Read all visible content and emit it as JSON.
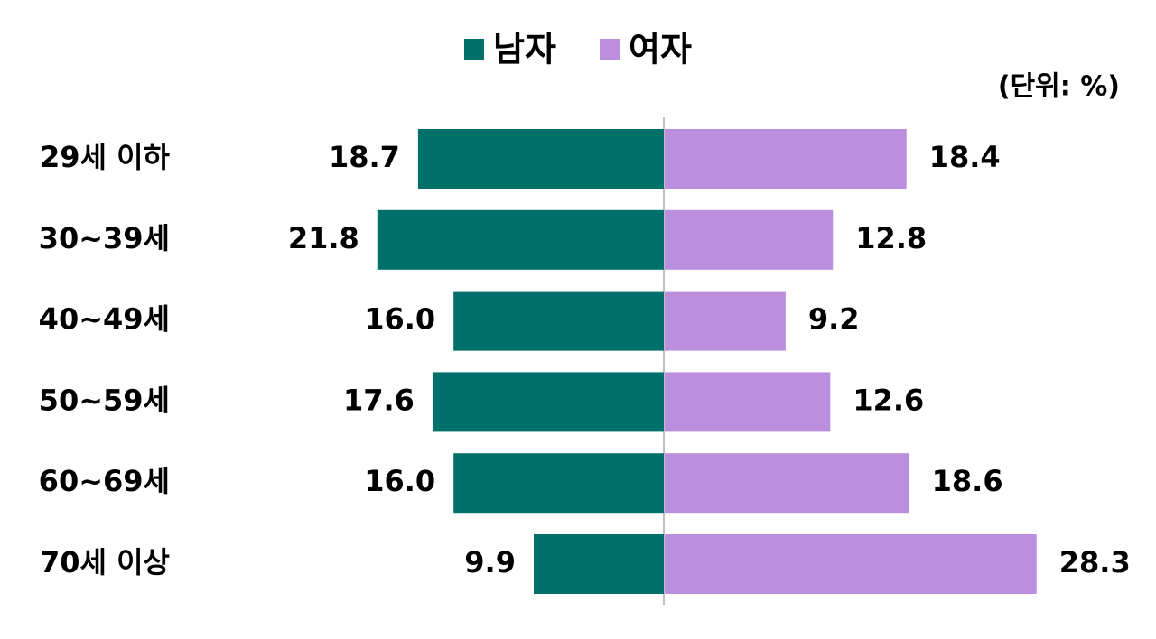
{
  "chart_data": {
    "type": "butterfly",
    "unit_label": "(단위: %)",
    "categories": [
      "29세 이하",
      "30~39세",
      "40~49세",
      "50~59세",
      "60~69세",
      "70세 이상"
    ],
    "series": [
      {
        "name": "남자",
        "color": "#00706b",
        "values": [
          18.7,
          21.8,
          16.0,
          17.6,
          16.0,
          9.9
        ],
        "value_labels": [
          "18.7",
          "21.8",
          "16.0",
          "17.6",
          "16.0",
          "9.9"
        ]
      },
      {
        "name": "여자",
        "color": "#bb8fdd",
        "values": [
          18.4,
          12.8,
          9.2,
          12.6,
          18.6,
          28.3
        ],
        "value_labels": [
          "18.4",
          "12.8",
          "9.2",
          "12.6",
          "18.6",
          "28.3"
        ]
      }
    ]
  }
}
